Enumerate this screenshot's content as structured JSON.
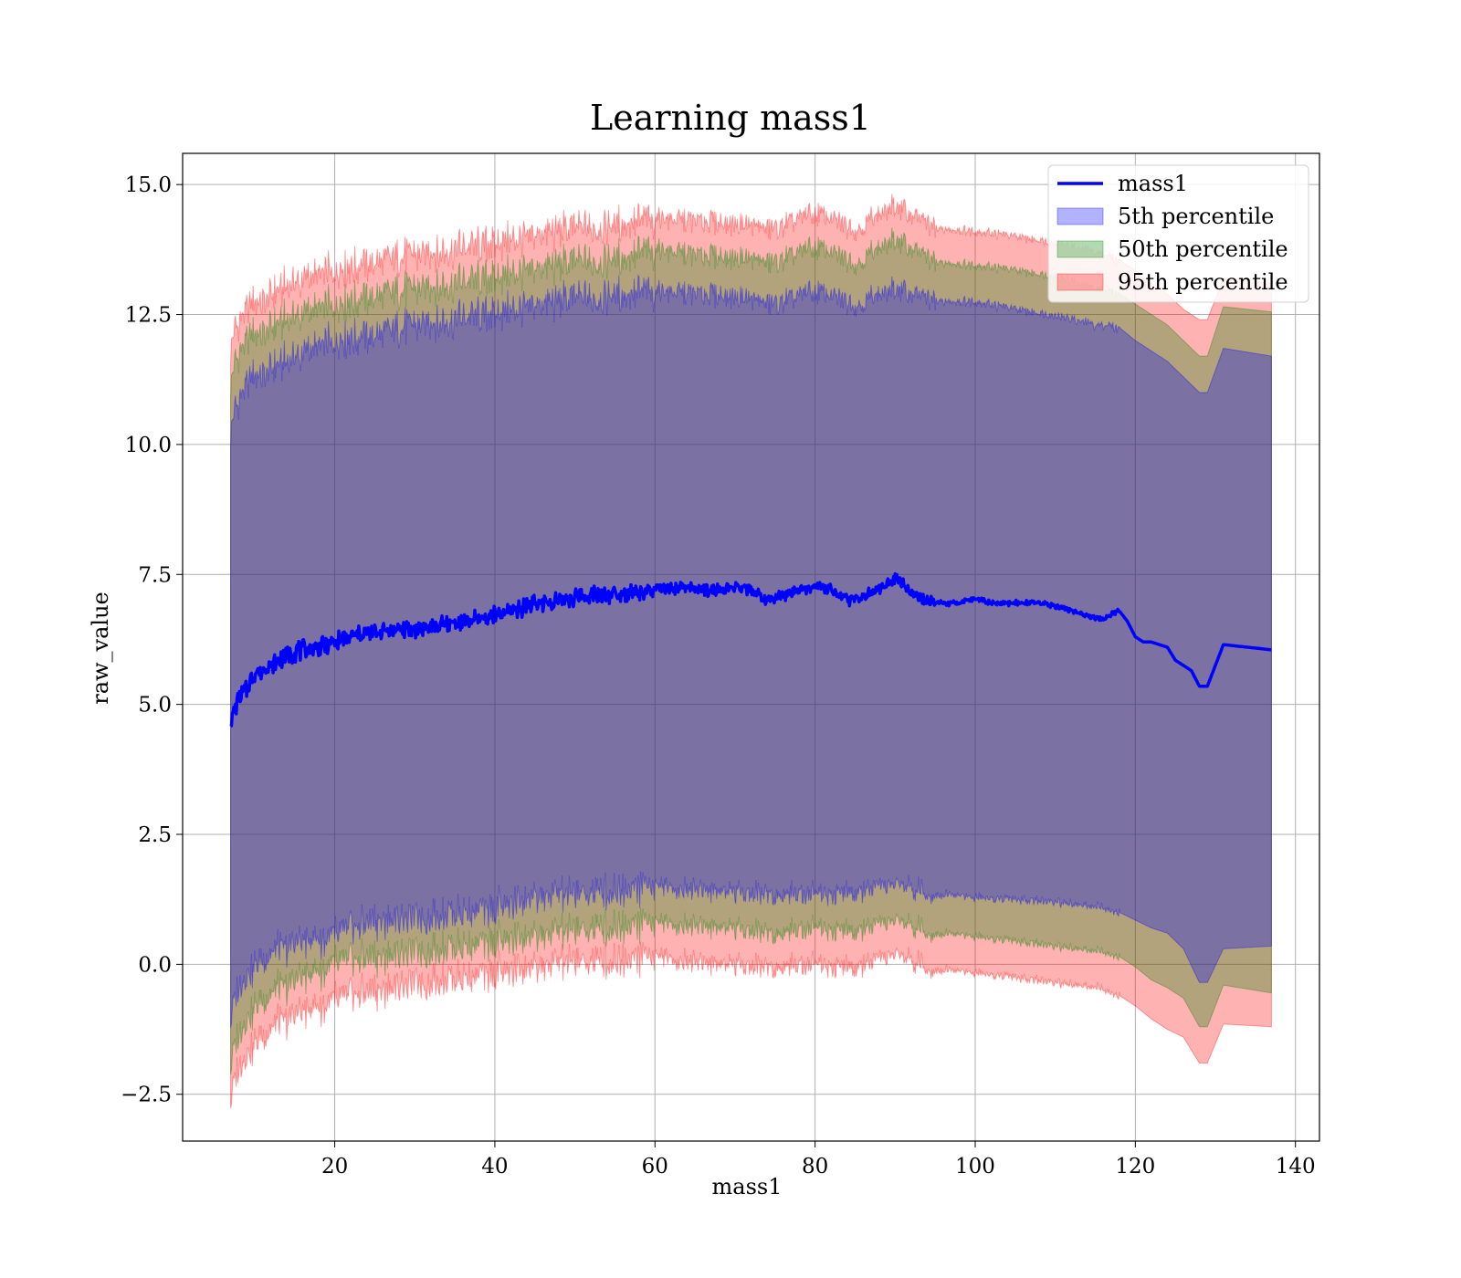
{
  "chart_data": {
    "type": "line",
    "title": "Learning mass1",
    "xlabel": "mass1",
    "ylabel": "raw_value",
    "xlim": [
      1.0,
      143.0
    ],
    "ylim": [
      -3.4,
      15.6
    ],
    "xticks": [
      20,
      40,
      60,
      80,
      100,
      120,
      140
    ],
    "yticks": [
      -2.5,
      0.0,
      2.5,
      5.0,
      7.5,
      10.0,
      12.5,
      15.0
    ],
    "xtick_labels": [
      "20",
      "40",
      "60",
      "80",
      "100",
      "120",
      "140"
    ],
    "ytick_labels": [
      "−2.5",
      "0.0",
      "2.5",
      "5.0",
      "7.5",
      "10.0",
      "12.5",
      "15.0"
    ],
    "grid": true,
    "legend_position": "top-right",
    "series": [
      {
        "name": "mass1",
        "kind": "line",
        "color": "#0000ff",
        "x": [
          7,
          8,
          9,
          10,
          12,
          14,
          16,
          18,
          20,
          22,
          24,
          26,
          28,
          30,
          32,
          34,
          36,
          38,
          40,
          42,
          44,
          46,
          48,
          50,
          52,
          54,
          56,
          58,
          60,
          62,
          64,
          66,
          68,
          70,
          72,
          74,
          76,
          78,
          80,
          82,
          84,
          86,
          88,
          90,
          92,
          94,
          96,
          98,
          100,
          102,
          104,
          106,
          108,
          110,
          112,
          114,
          116,
          118,
          119,
          120,
          121,
          122,
          123,
          124,
          125,
          126,
          127,
          128,
          129,
          131,
          137
        ],
        "y": [
          4.7,
          5.1,
          5.3,
          5.6,
          5.75,
          5.95,
          6.05,
          6.1,
          6.2,
          6.3,
          6.35,
          6.4,
          6.45,
          6.45,
          6.5,
          6.55,
          6.6,
          6.65,
          6.7,
          6.8,
          6.9,
          6.95,
          7.0,
          7.05,
          7.1,
          7.1,
          7.15,
          7.15,
          7.2,
          7.2,
          7.25,
          7.2,
          7.2,
          7.25,
          7.2,
          7.0,
          7.1,
          7.2,
          7.3,
          7.2,
          7.0,
          7.1,
          7.2,
          7.45,
          7.15,
          7.0,
          6.95,
          6.95,
          7.05,
          6.95,
          6.95,
          6.95,
          6.95,
          6.9,
          6.8,
          6.7,
          6.65,
          6.8,
          6.6,
          6.3,
          6.2,
          6.2,
          6.15,
          6.1,
          5.85,
          5.75,
          5.65,
          5.35,
          5.35,
          6.15,
          6.05
        ]
      },
      {
        "name": "5th percentile",
        "kind": "band",
        "color": "#0000ff",
        "x": [
          7,
          8,
          10,
          14,
          20,
          25,
          30,
          35,
          40,
          45,
          50,
          55,
          60,
          65,
          70,
          75,
          80,
          85,
          90,
          95,
          100,
          105,
          110,
          115,
          118,
          120,
          122,
          124,
          126,
          128,
          129,
          131,
          137
        ],
        "low": [
          -1.0,
          -0.4,
          0.0,
          0.35,
          0.55,
          0.85,
          0.9,
          1.0,
          1.1,
          1.3,
          1.35,
          1.45,
          1.5,
          1.45,
          1.4,
          1.35,
          1.4,
          1.35,
          1.55,
          1.35,
          1.3,
          1.25,
          1.2,
          1.1,
          1.0,
          0.85,
          0.7,
          0.6,
          0.3,
          -0.35,
          -0.35,
          0.3,
          0.35
        ],
        "high": [
          10.3,
          10.9,
          11.3,
          11.6,
          12.0,
          12.1,
          12.3,
          12.4,
          12.5,
          12.7,
          12.8,
          12.9,
          12.95,
          12.9,
          12.85,
          12.7,
          12.95,
          12.7,
          13.0,
          12.75,
          12.75,
          12.6,
          12.5,
          12.3,
          12.25,
          12.0,
          11.8,
          11.6,
          11.3,
          11.0,
          11.0,
          11.85,
          11.7
        ]
      },
      {
        "name": "50th percentile",
        "kind": "band",
        "color": "#008000",
        "x": [
          7,
          8,
          10,
          14,
          20,
          25,
          30,
          35,
          40,
          45,
          50,
          55,
          60,
          65,
          70,
          75,
          80,
          85,
          90,
          95,
          100,
          105,
          110,
          115,
          118,
          120,
          122,
          124,
          126,
          128,
          129,
          131,
          137
        ],
        "low": [
          -1.9,
          -1.3,
          -0.8,
          -0.4,
          0.0,
          0.15,
          0.25,
          0.35,
          0.45,
          0.55,
          0.65,
          0.75,
          0.8,
          0.75,
          0.7,
          0.6,
          0.75,
          0.6,
          0.85,
          0.6,
          0.55,
          0.45,
          0.35,
          0.25,
          0.15,
          -0.05,
          -0.3,
          -0.45,
          -0.65,
          -1.2,
          -1.2,
          -0.4,
          -0.55
        ],
        "high": [
          11.2,
          11.8,
          12.1,
          12.4,
          12.7,
          12.85,
          13.0,
          13.1,
          13.2,
          13.4,
          13.5,
          13.6,
          13.75,
          13.65,
          13.6,
          13.5,
          13.8,
          13.5,
          13.95,
          13.5,
          13.45,
          13.35,
          13.25,
          13.0,
          12.9,
          12.7,
          12.5,
          12.3,
          12.0,
          11.7,
          11.7,
          12.65,
          12.55
        ]
      },
      {
        "name": "95th percentile",
        "kind": "band",
        "color": "#ff0000",
        "x": [
          7,
          8,
          10,
          14,
          20,
          25,
          30,
          35,
          40,
          45,
          50,
          55,
          60,
          65,
          70,
          75,
          80,
          85,
          90,
          95,
          100,
          105,
          110,
          115,
          118,
          120,
          122,
          124,
          126,
          128,
          129,
          131,
          137
        ],
        "low": [
          -2.55,
          -1.95,
          -1.5,
          -1.05,
          -0.7,
          -0.5,
          -0.35,
          -0.25,
          -0.15,
          -0.05,
          0.05,
          0.1,
          0.15,
          0.05,
          0.0,
          -0.05,
          0.05,
          -0.1,
          0.2,
          -0.1,
          -0.15,
          -0.25,
          -0.35,
          -0.45,
          -0.6,
          -0.8,
          -1.05,
          -1.25,
          -1.4,
          -1.9,
          -1.9,
          -1.15,
          -1.2
        ],
        "high": [
          11.9,
          12.4,
          12.7,
          13.05,
          13.35,
          13.5,
          13.65,
          13.75,
          13.85,
          14.05,
          14.15,
          14.25,
          14.35,
          14.3,
          14.25,
          14.15,
          14.45,
          14.15,
          14.6,
          14.15,
          14.1,
          14.0,
          13.9,
          13.7,
          13.55,
          13.35,
          13.1,
          12.9,
          12.6,
          12.4,
          12.4,
          13.2,
          13.1
        ]
      }
    ]
  }
}
